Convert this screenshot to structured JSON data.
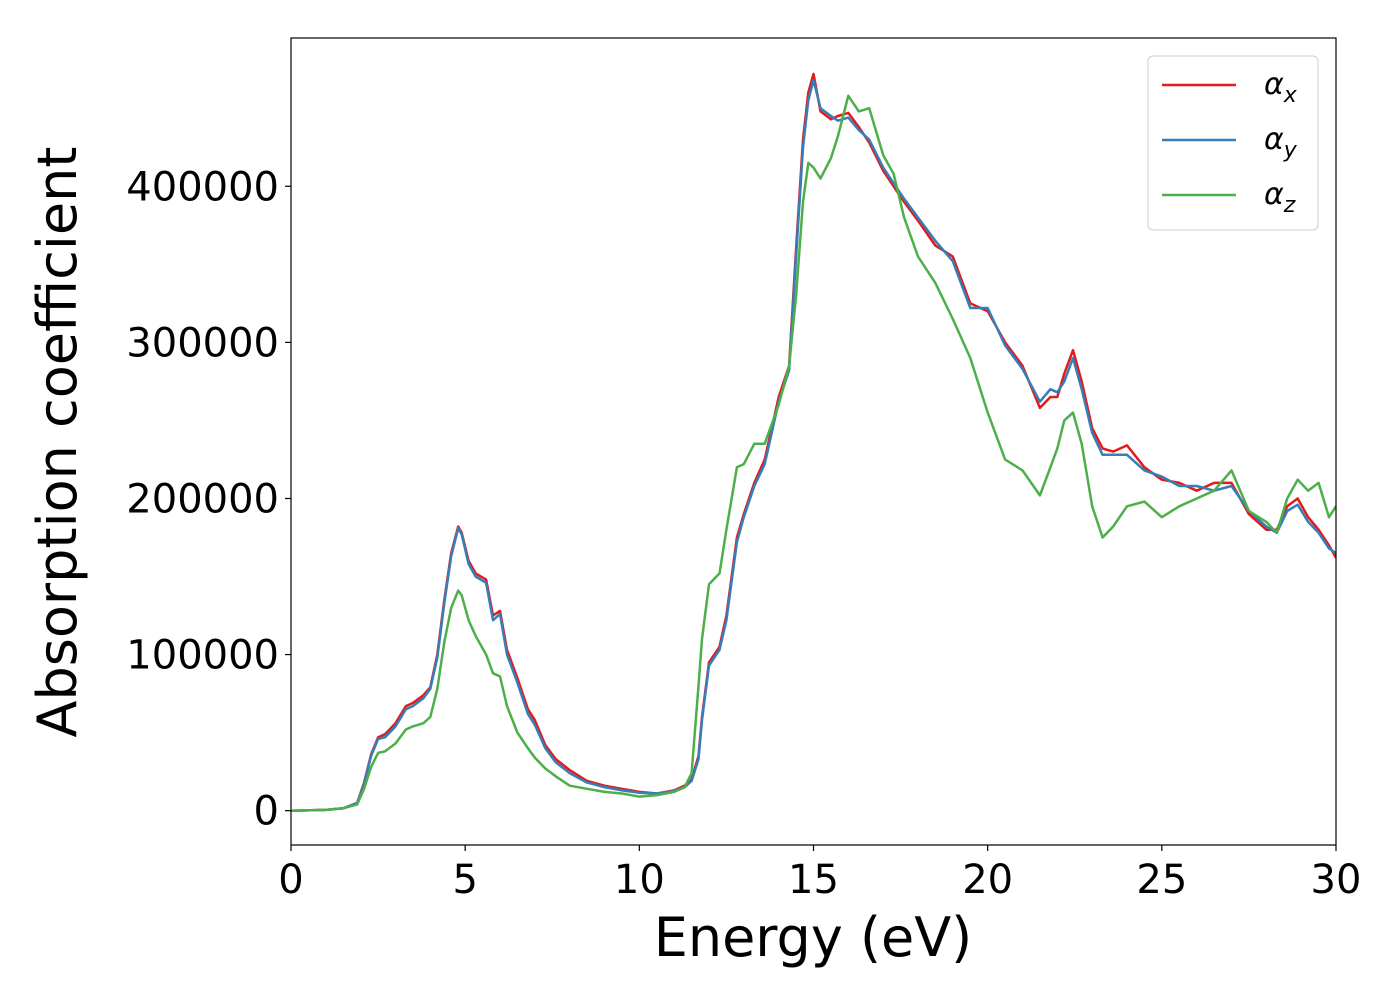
{
  "chart_data": {
    "type": "line",
    "title": "",
    "xlabel": "Energy (eV)",
    "ylabel": "Absorption coefficient",
    "xlim": [
      0,
      30
    ],
    "ylim": [
      -22000,
      495000
    ],
    "xticks": [
      0,
      5,
      10,
      15,
      20,
      25,
      30
    ],
    "yticks": [
      0,
      100000,
      200000,
      300000,
      400000
    ],
    "grid": false,
    "legend_position": "top-right",
    "series": [
      {
        "name": "α",
        "subscript": "x",
        "color": "#e41a1c",
        "x": [
          0,
          1,
          1.5,
          1.9,
          2.1,
          2.3,
          2.5,
          2.7,
          3.0,
          3.3,
          3.5,
          3.8,
          4.0,
          4.2,
          4.4,
          4.6,
          4.8,
          4.9,
          5.1,
          5.3,
          5.6,
          5.8,
          6.0,
          6.2,
          6.5,
          6.8,
          7.0,
          7.3,
          7.6,
          8.0,
          8.5,
          9.0,
          9.5,
          10.0,
          10.5,
          11.0,
          11.3,
          11.5,
          11.7,
          11.8,
          12.0,
          12.3,
          12.5,
          12.8,
          13.0,
          13.3,
          13.6,
          14.0,
          14.3,
          14.5,
          14.7,
          14.85,
          15.0,
          15.2,
          15.5,
          15.7,
          16.0,
          16.3,
          16.6,
          17.0,
          17.3,
          17.6,
          18.0,
          18.5,
          19.0,
          19.5,
          20.0,
          20.5,
          21.0,
          21.5,
          21.8,
          22.0,
          22.2,
          22.45,
          22.7,
          23.0,
          23.3,
          23.6,
          24.0,
          24.5,
          25.0,
          25.5,
          26.0,
          26.5,
          27.0,
          27.5,
          28.0,
          28.3,
          28.6,
          28.9,
          29.2,
          29.5,
          29.8,
          30.0
        ],
        "y": [
          0,
          500,
          1500,
          5000,
          18000,
          36000,
          47000,
          49000,
          56000,
          67000,
          69000,
          74000,
          79000,
          100000,
          135000,
          165000,
          182000,
          178000,
          160000,
          152000,
          148000,
          125000,
          128000,
          103000,
          85000,
          65000,
          58000,
          42000,
          33000,
          26000,
          19000,
          16000,
          14000,
          12000,
          11000,
          13000,
          16000,
          20000,
          35000,
          60000,
          95000,
          105000,
          125000,
          175000,
          190000,
          210000,
          225000,
          265000,
          285000,
          360000,
          430000,
          460000,
          472000,
          448000,
          443000,
          445000,
          447000,
          438000,
          428000,
          410000,
          400000,
          390000,
          378000,
          362000,
          355000,
          325000,
          320000,
          300000,
          285000,
          258000,
          265000,
          265000,
          280000,
          295000,
          275000,
          245000,
          232000,
          230000,
          234000,
          220000,
          212000,
          210000,
          205000,
          210000,
          210000,
          190000,
          180000,
          180000,
          195000,
          200000,
          188000,
          180000,
          170000,
          162000
        ]
      },
      {
        "name": "α",
        "subscript": "y",
        "color": "#377eb8",
        "x": [
          0,
          1,
          1.5,
          1.9,
          2.1,
          2.3,
          2.5,
          2.7,
          3.0,
          3.3,
          3.5,
          3.8,
          4.0,
          4.2,
          4.4,
          4.6,
          4.8,
          4.9,
          5.1,
          5.3,
          5.6,
          5.8,
          6.0,
          6.2,
          6.5,
          6.8,
          7.0,
          7.3,
          7.6,
          8.0,
          8.5,
          9.0,
          9.5,
          10.0,
          10.5,
          11.0,
          11.3,
          11.5,
          11.7,
          11.8,
          12.0,
          12.3,
          12.5,
          12.8,
          13.0,
          13.3,
          13.6,
          14.0,
          14.3,
          14.5,
          14.7,
          14.85,
          15.0,
          15.2,
          15.5,
          15.7,
          16.0,
          16.3,
          16.6,
          17.0,
          17.3,
          17.6,
          18.0,
          18.5,
          19.0,
          19.5,
          20.0,
          20.5,
          21.0,
          21.5,
          21.8,
          22.0,
          22.2,
          22.45,
          22.7,
          23.0,
          23.3,
          23.6,
          24.0,
          24.5,
          25.0,
          25.5,
          26.0,
          26.5,
          27.0,
          27.5,
          28.0,
          28.3,
          28.6,
          28.9,
          29.2,
          29.5,
          29.8,
          30.0
        ],
        "y": [
          0,
          500,
          1500,
          5000,
          17000,
          35000,
          46000,
          47000,
          54000,
          65000,
          67000,
          72000,
          78000,
          98000,
          133000,
          163000,
          181000,
          177000,
          158000,
          150000,
          146000,
          122000,
          126000,
          100000,
          82000,
          62000,
          55000,
          40000,
          31000,
          24000,
          18000,
          15000,
          13000,
          11500,
          11000,
          12500,
          15000,
          19000,
          33000,
          58000,
          93000,
          103000,
          122000,
          172000,
          188000,
          208000,
          222000,
          262000,
          282000,
          355000,
          425000,
          455000,
          468000,
          450000,
          445000,
          442000,
          444000,
          436000,
          430000,
          412000,
          402000,
          392000,
          380000,
          365000,
          352000,
          322000,
          322000,
          298000,
          283000,
          262000,
          270000,
          268000,
          275000,
          290000,
          270000,
          242000,
          228000,
          228000,
          228000,
          218000,
          214000,
          208000,
          208000,
          205000,
          208000,
          192000,
          182000,
          178000,
          192000,
          196000,
          185000,
          178000,
          168000,
          165000
        ]
      },
      {
        "name": "α",
        "subscript": "z",
        "color": "#4daf4a",
        "x": [
          0,
          1,
          1.5,
          1.9,
          2.1,
          2.3,
          2.5,
          2.7,
          3.0,
          3.3,
          3.5,
          3.8,
          4.0,
          4.2,
          4.4,
          4.6,
          4.8,
          4.9,
          5.1,
          5.3,
          5.6,
          5.8,
          6.0,
          6.2,
          6.5,
          6.8,
          7.0,
          7.3,
          7.6,
          8.0,
          8.5,
          9.0,
          9.5,
          10.0,
          10.5,
          11.0,
          11.3,
          11.5,
          11.7,
          11.8,
          12.0,
          12.3,
          12.5,
          12.8,
          13.0,
          13.3,
          13.6,
          14.0,
          14.3,
          14.5,
          14.7,
          14.85,
          15.0,
          15.2,
          15.5,
          15.7,
          16.0,
          16.3,
          16.6,
          17.0,
          17.3,
          17.6,
          18.0,
          18.5,
          19.0,
          19.5,
          20.0,
          20.5,
          21.0,
          21.5,
          21.8,
          22.0,
          22.2,
          22.45,
          22.7,
          23.0,
          23.3,
          23.6,
          24.0,
          24.5,
          25.0,
          25.5,
          26.0,
          26.5,
          27.0,
          27.5,
          28.0,
          28.3,
          28.6,
          28.9,
          29.2,
          29.5,
          29.8,
          30.0
        ],
        "y": [
          0,
          500,
          1500,
          4000,
          14000,
          28000,
          37000,
          38000,
          43000,
          52000,
          54000,
          56000,
          60000,
          78000,
          108000,
          130000,
          141000,
          138000,
          122000,
          112000,
          100000,
          88000,
          86000,
          67000,
          50000,
          40000,
          34000,
          27000,
          22000,
          16000,
          14000,
          12000,
          11000,
          9000,
          10000,
          12000,
          15000,
          24000,
          80000,
          110000,
          145000,
          152000,
          180000,
          220000,
          222000,
          235000,
          235000,
          260000,
          285000,
          330000,
          390000,
          415000,
          412000,
          405000,
          418000,
          432000,
          458000,
          448000,
          450000,
          420000,
          408000,
          380000,
          355000,
          338000,
          315000,
          290000,
          255000,
          225000,
          218000,
          202000,
          220000,
          232000,
          250000,
          255000,
          235000,
          195000,
          175000,
          182000,
          195000,
          198000,
          188000,
          195000,
          200000,
          205000,
          218000,
          192000,
          185000,
          178000,
          200000,
          212000,
          205000,
          210000,
          188000,
          195000
        ]
      }
    ]
  }
}
